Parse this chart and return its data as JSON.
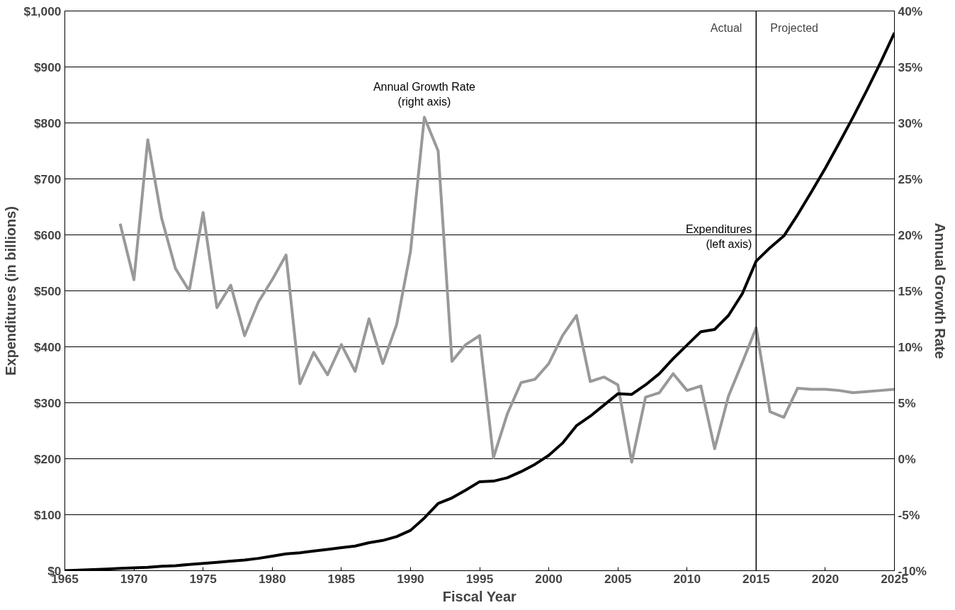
{
  "chart_data": {
    "type": "line",
    "xlabel": "Fiscal Year",
    "ylabel": "Expenditures (in billions)",
    "y2label": "Annual Growth Rate",
    "xlim": [
      1965,
      2025
    ],
    "xticks": [
      1965,
      1970,
      1975,
      1980,
      1985,
      1990,
      1995,
      2000,
      2005,
      2010,
      2015,
      2020,
      2025
    ],
    "ylim": [
      0,
      1000
    ],
    "yticks": [
      {
        "value": 0,
        "label": "$0"
      },
      {
        "value": 100,
        "label": "$100"
      },
      {
        "value": 200,
        "label": "$200"
      },
      {
        "value": 300,
        "label": "$300"
      },
      {
        "value": 400,
        "label": "$400"
      },
      {
        "value": 500,
        "label": "$500"
      },
      {
        "value": 600,
        "label": "$600"
      },
      {
        "value": 700,
        "label": "$700"
      },
      {
        "value": 800,
        "label": "$800"
      },
      {
        "value": 900,
        "label": "$900"
      },
      {
        "value": 1000,
        "label": "$1,000"
      }
    ],
    "y2lim": [
      -10,
      40
    ],
    "y2ticks": [
      {
        "value": -10,
        "label": "-10%"
      },
      {
        "value": -5,
        "label": "-5%"
      },
      {
        "value": 0,
        "label": "0%"
      },
      {
        "value": 5,
        "label": "5%"
      },
      {
        "value": 10,
        "label": "10%"
      },
      {
        "value": 15,
        "label": "15%"
      },
      {
        "value": 20,
        "label": "20%"
      },
      {
        "value": 25,
        "label": "25%"
      },
      {
        "value": 30,
        "label": "30%"
      },
      {
        "value": 35,
        "label": "35%"
      },
      {
        "value": 40,
        "label": "40%"
      }
    ],
    "grid": "y",
    "marker": "none",
    "line_style": "solid",
    "series": [
      {
        "name": "Annual Growth Rate\n(right axis)",
        "color": "#999999",
        "axis": "y2",
        "x": [
          1969,
          1970,
          1971,
          1972,
          1973,
          1974,
          1975,
          1976,
          1977,
          1978,
          1979,
          1980,
          1981,
          1982,
          1983,
          1984,
          1985,
          1986,
          1987,
          1988,
          1989,
          1990,
          1991,
          1992,
          1993,
          1994,
          1995,
          1996,
          1997,
          1998,
          1999,
          2000,
          2001,
          2002,
          2003,
          2004,
          2005,
          2006,
          2007,
          2008,
          2009,
          2010,
          2011,
          2012,
          2013,
          2014,
          2015,
          2016,
          2017,
          2018,
          2019,
          2020,
          2021,
          2022,
          2023,
          2024,
          2025
        ],
        "values": [
          21,
          16,
          28.5,
          21.5,
          17,
          15,
          22,
          13.5,
          15.5,
          11,
          14,
          16,
          18.2,
          6.7,
          9.5,
          7.5,
          10.2,
          7.8,
          12.5,
          8.5,
          12,
          18.5,
          30.5,
          27.5,
          8.7,
          10.2,
          11,
          0.1,
          4,
          6.8,
          7.1,
          8.5,
          11,
          12.8,
          6.9,
          7.3,
          6.6,
          -0.3,
          5.5,
          5.9,
          7.6,
          6.1,
          6.5,
          0.9,
          5.6,
          8.6,
          11.7,
          4.2,
          3.7,
          6.3,
          6.2,
          6.2,
          6.1,
          5.9,
          6.0,
          6.1,
          6.2
        ]
      },
      {
        "name": "Expenditures\n(left axis)",
        "color": "#000000",
        "x": [
          1965,
          1966,
          1967,
          1968,
          1969,
          1970,
          1971,
          1972,
          1973,
          1974,
          1975,
          1976,
          1977,
          1978,
          1979,
          1980,
          1981,
          1982,
          1983,
          1984,
          1985,
          1986,
          1987,
          1988,
          1989,
          1990,
          1991,
          1992,
          1993,
          1994,
          1995,
          1996,
          1997,
          1998,
          1999,
          2000,
          2001,
          2002,
          2003,
          2004,
          2005,
          2006,
          2007,
          2008,
          2009,
          2010,
          2011,
          2012,
          2013,
          2014,
          2015,
          2016,
          2017,
          2018,
          2019,
          2020,
          2021,
          2022,
          2023,
          2024,
          2025
        ],
        "values": [
          0,
          1,
          2,
          3,
          4,
          5,
          6,
          8,
          9,
          11,
          13,
          15,
          17,
          19,
          22,
          26,
          30,
          32,
          35,
          38,
          41,
          44,
          50,
          54,
          61,
          72,
          94,
          120,
          130,
          144,
          159,
          160,
          166,
          177,
          190,
          206,
          228,
          259,
          276,
          296,
          316,
          315,
          332,
          352,
          379,
          403,
          427,
          431,
          456,
          495,
          553,
          577,
          598,
          636,
          677,
          719,
          764,
          810,
          858,
          908,
          961
        ]
      }
    ],
    "ref_lines": [
      {
        "axis": "x",
        "value": 2015,
        "color": "#000000"
      }
    ],
    "annotations": [
      "Actual",
      "Projected"
    ]
  }
}
